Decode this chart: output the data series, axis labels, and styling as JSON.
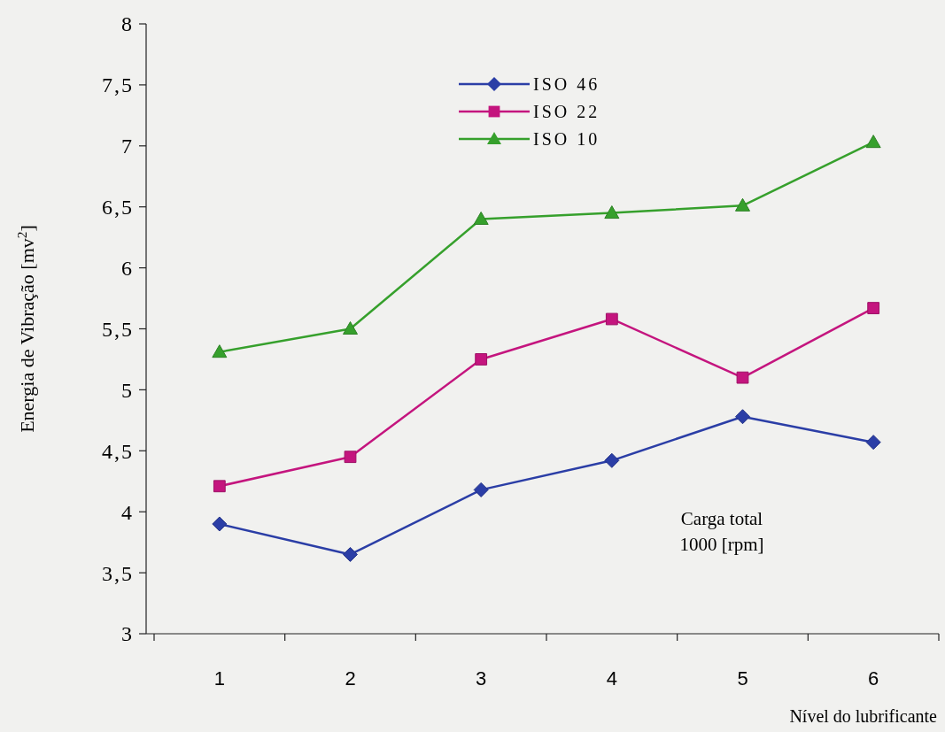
{
  "chart_data": {
    "type": "line",
    "xlabel": "Nível do lubrificante",
    "ylabel": "Energia de Vibração [mv$^{2}$]",
    "categories": [
      "1",
      "2",
      "3",
      "4",
      "5",
      "6"
    ],
    "series": [
      {
        "name": "ISO 46",
        "color": "#2b3ea6",
        "marker": "diamond",
        "values": [
          3.9,
          3.65,
          4.18,
          4.42,
          4.78,
          4.57
        ]
      },
      {
        "name": "ISO 22",
        "color": "#c4157e",
        "marker": "square",
        "values": [
          4.21,
          4.45,
          5.25,
          5.58,
          5.1,
          5.67
        ]
      },
      {
        "name": "ISO 10",
        "color": "#36a02c",
        "marker": "triangle",
        "values": [
          5.31,
          5.5,
          6.4,
          6.45,
          6.51,
          7.03
        ]
      }
    ],
    "ylim": [
      3,
      8
    ],
    "yticks": [
      3,
      {
        "value": 3.5,
        "label": "3,5"
      },
      4,
      {
        "value": 4.5,
        "label": "4,5"
      },
      5,
      {
        "value": 5.5,
        "label": "5,5"
      },
      6,
      {
        "value": 6.5,
        "label": "6,5"
      },
      7,
      {
        "value": 7.5,
        "label": "7,5"
      },
      8
    ],
    "grid": false,
    "legend": "top",
    "line_style": "solid",
    "annotations": [
      "Carga total\n1000 [rpm]"
    ]
  }
}
